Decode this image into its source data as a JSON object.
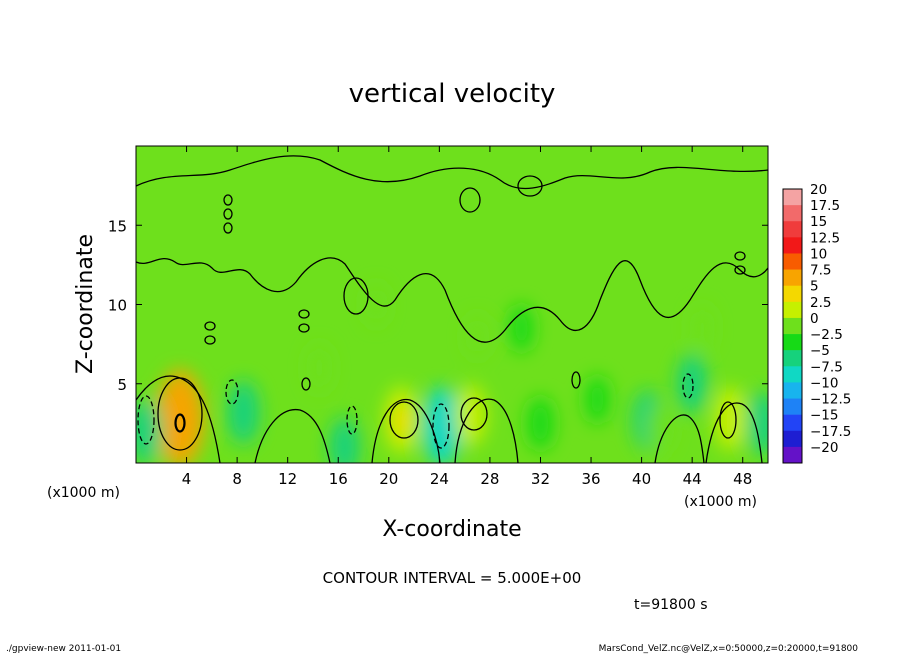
{
  "chart_data": {
    "type": "heatmap",
    "title": "vertical velocity",
    "xlabel": "X-coordinate",
    "ylabel": "Z-coordinate",
    "x_unit_left": "(x1000 m)",
    "x_unit_right": "(x1000 m)",
    "xlim": [
      0,
      50
    ],
    "ylim": [
      0,
      20
    ],
    "x_ticks": [
      4,
      8,
      12,
      16,
      20,
      24,
      28,
      32,
      36,
      40,
      44,
      48
    ],
    "y_ticks": [
      5,
      10,
      15
    ],
    "colorbar": {
      "levels": [
        20,
        17.5,
        15,
        12.5,
        10,
        7.5,
        5,
        2.5,
        0,
        -2.5,
        -5,
        -7.5,
        -10,
        -12.5,
        -15,
        -17.5,
        -20
      ],
      "level_labels": [
        "20",
        "17.5",
        "15",
        "12.5",
        "10",
        "7.5",
        "5",
        "2.5",
        "0",
        "−2.5",
        "−5",
        "−7.5",
        "−10",
        "−12.5",
        "−15",
        "−17.5",
        "−20"
      ],
      "colors": [
        "#f4a3a3",
        "#f26a6a",
        "#f03c3c",
        "#f21818",
        "#f85c00",
        "#f8a400",
        "#f4d800",
        "#c6f000",
        "#6ee01c",
        "#16da16",
        "#16d27c",
        "#10d8c4",
        "#18b4ee",
        "#1e82f6",
        "#2244f6",
        "#1e1ed2",
        "#6412c8"
      ]
    },
    "features": [
      {
        "x": 3.5,
        "z": 2.8,
        "w": 7.8
      },
      {
        "x": 8.5,
        "z": 3.2,
        "w": -3.5
      },
      {
        "x": 14.5,
        "z": 6.0,
        "w": 1.8
      },
      {
        "x": 19.0,
        "z": 10.0,
        "w": 1.0
      },
      {
        "x": 21.0,
        "z": 2.7,
        "w": 4.0
      },
      {
        "x": 24.2,
        "z": 2.3,
        "w": -5.5
      },
      {
        "x": 26.5,
        "z": 3.0,
        "w": 3.2
      },
      {
        "x": 27.0,
        "z": 8.0,
        "w": 1.2
      },
      {
        "x": 30.5,
        "z": 8.5,
        "w": -1.5
      },
      {
        "x": 32.0,
        "z": 2.5,
        "w": -2.2
      },
      {
        "x": 36.5,
        "z": 4.0,
        "w": -1.5
      },
      {
        "x": 40.5,
        "z": 2.7,
        "w": -3.0
      },
      {
        "x": 41.5,
        "z": 2.2,
        "w": 1.8
      },
      {
        "x": 44.0,
        "z": 5.0,
        "w": -3.0
      },
      {
        "x": 44.8,
        "z": 8.5,
        "w": 1.6
      },
      {
        "x": 47.0,
        "z": 2.8,
        "w": 3.5
      },
      {
        "x": 49.5,
        "z": 2.5,
        "w": -3.5
      },
      {
        "x": 0.8,
        "z": 2.0,
        "w": -3.8
      },
      {
        "x": 16.5,
        "z": 1.0,
        "w": -3.0
      }
    ],
    "contour_interval_text": "CONTOUR INTERVAL = 5.000E+00",
    "time_text": "t=91800 s"
  },
  "footer": {
    "left": "./gpview-new  2011-01-01",
    "right": "MarsCond_VelZ.nc@VelZ,x=0:50000,z=0:20000,t=91800"
  }
}
